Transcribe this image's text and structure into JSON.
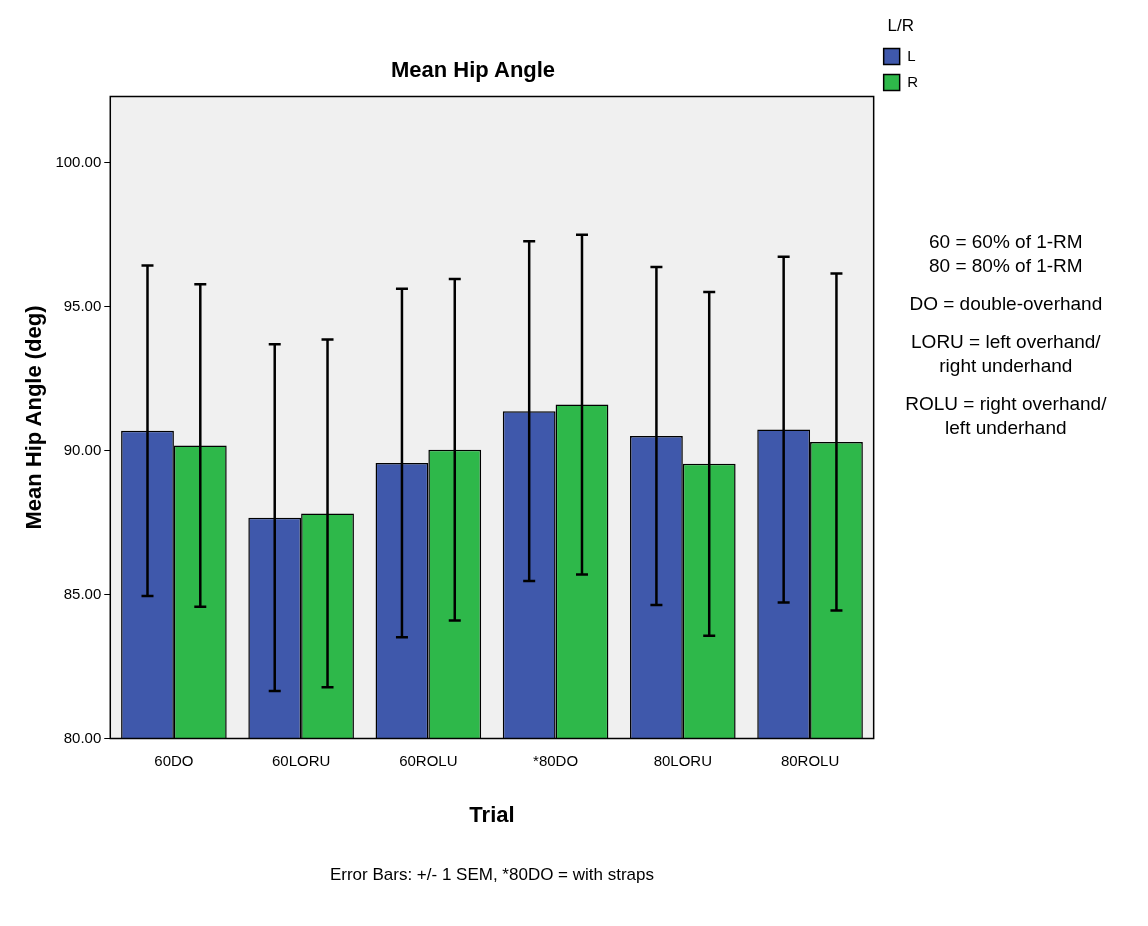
{
  "chart_data": {
    "type": "bar",
    "title": "Mean Hip Angle",
    "xlabel": "Trial",
    "ylabel": "Mean Hip Angle (deg)",
    "legend_title": "L/R",
    "categories": [
      "60DO",
      "60LORU",
      "60ROLU",
      "*80DO",
      "80LORU",
      "80ROLU"
    ],
    "series": [
      {
        "name": "L",
        "color": "#3f58ab",
        "values": [
          90.69,
          87.67,
          89.57,
          91.37,
          90.51,
          90.73
        ],
        "errors": [
          5.74,
          6.02,
          6.05,
          5.9,
          5.87,
          6.0
        ]
      },
      {
        "name": "R",
        "color": "#2eb84a",
        "values": [
          90.18,
          87.82,
          90.03,
          91.6,
          89.54,
          90.3
        ],
        "errors": [
          5.6,
          6.04,
          5.93,
          5.9,
          5.97,
          5.85
        ]
      }
    ],
    "ylim": [
      80,
      102.3
    ],
    "yticks": [
      {
        "value": 80,
        "label": "80.00"
      },
      {
        "value": 85,
        "label": "85.00"
      },
      {
        "value": 90,
        "label": "90.00"
      },
      {
        "value": 95,
        "label": "95.00"
      },
      {
        "value": 100,
        "label": "100.00"
      }
    ],
    "legend": "top right",
    "annotations": [
      "60 = 60% of 1-RM\n80 = 80% of 1-RM",
      "DO = double-overhand",
      "LORU = left overhand/\nright underhand",
      "ROLU = right overhand/\nleft underhand",
      "Error Bars: +/- 1 SEM, *80DO = with straps"
    ]
  }
}
